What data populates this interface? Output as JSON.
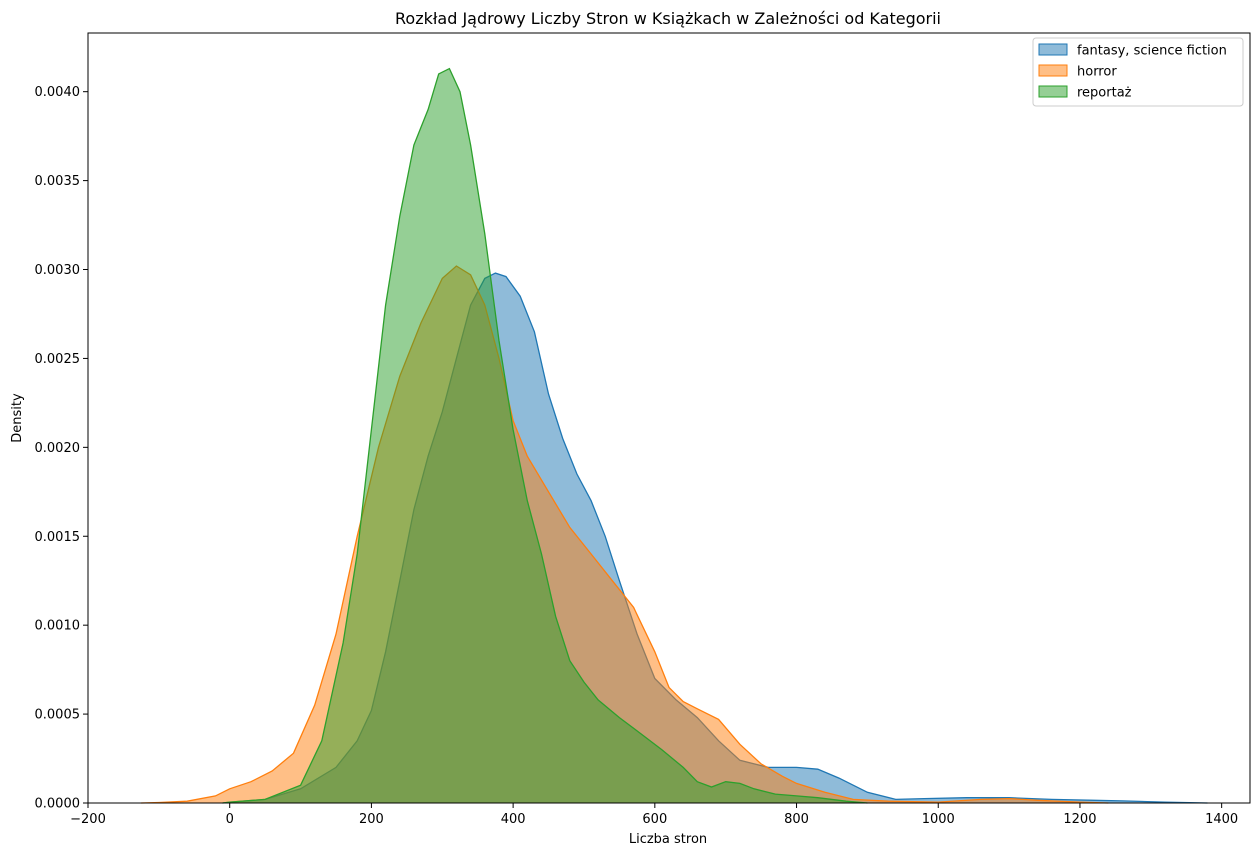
{
  "chart_data": {
    "type": "area",
    "title": "Rozkład Jądrowy Liczby Stron w Książkach w Zależności od Kategorii",
    "xlabel": "Liczba stron",
    "ylabel": "Density",
    "xlim": [
      -200,
      1440
    ],
    "ylim": [
      0,
      0.00433
    ],
    "xticks": [
      -200,
      0,
      200,
      400,
      600,
      800,
      1000,
      1200,
      1400
    ],
    "xtick_labels": [
      "−200",
      "0",
      "200",
      "400",
      "600",
      "800",
      "1000",
      "1200",
      "1400"
    ],
    "yticks": [
      0,
      0.0005,
      0.001,
      0.0015,
      0.002,
      0.0025,
      0.003,
      0.0035,
      0.004
    ],
    "ytick_labels": [
      "0.0000",
      "0.0005",
      "0.0010",
      "0.0015",
      "0.0020",
      "0.0025",
      "0.0030",
      "0.0035",
      "0.0040"
    ],
    "grid": false,
    "legend_position": "top-right",
    "series": [
      {
        "name": "fantasy, science fiction",
        "fill": "#1f77b4",
        "stroke": "#1f77b4",
        "points": [
          [
            -10,
            0
          ],
          [
            0,
            5e-06
          ],
          [
            50,
            2e-05
          ],
          [
            100,
            8e-05
          ],
          [
            150,
            0.0002
          ],
          [
            180,
            0.00035
          ],
          [
            200,
            0.00052
          ],
          [
            220,
            0.00085
          ],
          [
            240,
            0.00125
          ],
          [
            260,
            0.00165
          ],
          [
            280,
            0.00195
          ],
          [
            300,
            0.0022
          ],
          [
            320,
            0.0025
          ],
          [
            340,
            0.0028
          ],
          [
            360,
            0.00295
          ],
          [
            375,
            0.00298
          ],
          [
            390,
            0.00296
          ],
          [
            410,
            0.00285
          ],
          [
            430,
            0.00265
          ],
          [
            450,
            0.0023
          ],
          [
            470,
            0.00205
          ],
          [
            490,
            0.00185
          ],
          [
            510,
            0.0017
          ],
          [
            530,
            0.0015
          ],
          [
            550,
            0.00125
          ],
          [
            575,
            0.00095
          ],
          [
            600,
            0.0007
          ],
          [
            630,
            0.00058
          ],
          [
            660,
            0.00048
          ],
          [
            690,
            0.00035
          ],
          [
            720,
            0.00024
          ],
          [
            760,
            0.0002
          ],
          [
            800,
            0.0002
          ],
          [
            830,
            0.00019
          ],
          [
            860,
            0.00014
          ],
          [
            900,
            6e-05
          ],
          [
            940,
            2e-05
          ],
          [
            980,
            2.5e-05
          ],
          [
            1040,
            3e-05
          ],
          [
            1100,
            3e-05
          ],
          [
            1160,
            2e-05
          ],
          [
            1220,
            1.5e-05
          ],
          [
            1260,
            1.2e-05
          ],
          [
            1320,
            5e-06
          ],
          [
            1380,
            0
          ]
        ]
      },
      {
        "name": "horror",
        "fill": "#ff7f0e",
        "stroke": "#ff7f0e",
        "points": [
          [
            -125,
            0
          ],
          [
            -100,
            3e-06
          ],
          [
            -60,
            1e-05
          ],
          [
            -20,
            4e-05
          ],
          [
            0,
            8e-05
          ],
          [
            30,
            0.00012
          ],
          [
            60,
            0.00018
          ],
          [
            90,
            0.00028
          ],
          [
            120,
            0.00055
          ],
          [
            150,
            0.00095
          ],
          [
            180,
            0.0015
          ],
          [
            210,
            0.002
          ],
          [
            240,
            0.0024
          ],
          [
            270,
            0.0027
          ],
          [
            300,
            0.00295
          ],
          [
            320,
            0.00302
          ],
          [
            340,
            0.00297
          ],
          [
            360,
            0.0028
          ],
          [
            380,
            0.0025
          ],
          [
            400,
            0.00215
          ],
          [
            420,
            0.00195
          ],
          [
            450,
            0.00175
          ],
          [
            480,
            0.00155
          ],
          [
            510,
            0.0014
          ],
          [
            540,
            0.00125
          ],
          [
            570,
            0.0011
          ],
          [
            600,
            0.00085
          ],
          [
            620,
            0.00065
          ],
          [
            640,
            0.00057
          ],
          [
            660,
            0.00053
          ],
          [
            690,
            0.00047
          ],
          [
            720,
            0.00033
          ],
          [
            750,
            0.00022
          ],
          [
            780,
            0.00015
          ],
          [
            800,
            0.00011
          ],
          [
            840,
            6e-05
          ],
          [
            880,
            2e-05
          ],
          [
            930,
            1e-05
          ],
          [
            1000,
            5e-06
          ],
          [
            1060,
            2e-05
          ],
          [
            1100,
            2.5e-05
          ],
          [
            1140,
            1.5e-05
          ],
          [
            1200,
            5e-06
          ],
          [
            1240,
            0
          ]
        ]
      },
      {
        "name": "reportaż",
        "fill": "#2ca02c",
        "stroke": "#2ca02c",
        "points": [
          [
            -10,
            0
          ],
          [
            0,
            5e-06
          ],
          [
            50,
            2e-05
          ],
          [
            100,
            0.0001
          ],
          [
            130,
            0.00035
          ],
          [
            160,
            0.0009
          ],
          [
            180,
            0.0014
          ],
          [
            200,
            0.0021
          ],
          [
            220,
            0.0028
          ],
          [
            240,
            0.0033
          ],
          [
            260,
            0.0037
          ],
          [
            280,
            0.0039
          ],
          [
            295,
            0.0041
          ],
          [
            310,
            0.00413
          ],
          [
            325,
            0.004
          ],
          [
            340,
            0.0037
          ],
          [
            360,
            0.0032
          ],
          [
            380,
            0.0026
          ],
          [
            400,
            0.0021
          ],
          [
            420,
            0.0017
          ],
          [
            440,
            0.0014
          ],
          [
            460,
            0.00105
          ],
          [
            480,
            0.0008
          ],
          [
            500,
            0.00068
          ],
          [
            520,
            0.00058
          ],
          [
            550,
            0.00048
          ],
          [
            580,
            0.00039
          ],
          [
            610,
            0.0003
          ],
          [
            640,
            0.0002
          ],
          [
            660,
            0.00012
          ],
          [
            680,
            9e-05
          ],
          [
            700,
            0.00012
          ],
          [
            720,
            0.00011
          ],
          [
            740,
            8e-05
          ],
          [
            770,
            5e-05
          ],
          [
            800,
            4e-05
          ],
          [
            830,
            3e-05
          ],
          [
            870,
            1e-05
          ],
          [
            900,
            0
          ]
        ]
      }
    ]
  }
}
